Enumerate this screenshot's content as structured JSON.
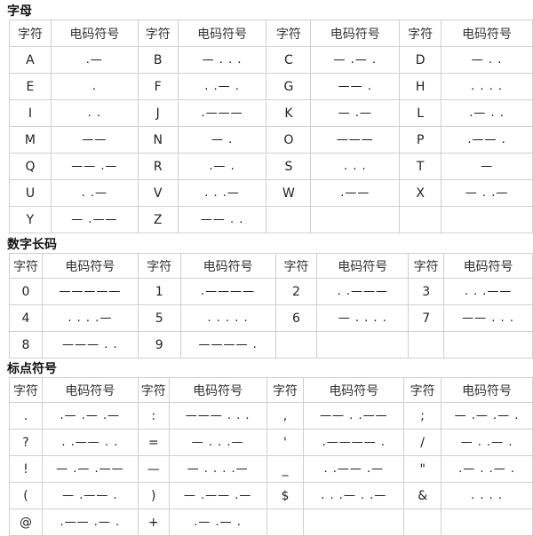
{
  "sections": [
    {
      "title": "字母",
      "headers": [
        "字符",
        "电码符号",
        "字符",
        "电码符号",
        "字符",
        "电码符号",
        "字符",
        "电码符号"
      ],
      "rows": [
        [
          "A",
          ".—",
          "B",
          "— . . .",
          "C",
          "— .— .",
          "D",
          "— . ."
        ],
        [
          "E",
          ".",
          "F",
          ". .— .",
          "G",
          "—— .",
          "H",
          ". . . ."
        ],
        [
          "I",
          ". .",
          "J",
          ".———",
          "K",
          "— .—",
          "L",
          ".— . ."
        ],
        [
          "M",
          "——",
          "N",
          "— .",
          "O",
          "———",
          "P",
          ".—— ."
        ],
        [
          "Q",
          "—— .—",
          "R",
          ".— .",
          "S",
          ". . .",
          "T",
          "—"
        ],
        [
          "U",
          ". .—",
          "V",
          ". . .—",
          "W",
          ".——",
          "X",
          "— . .—"
        ],
        [
          "Y",
          "— .——",
          "Z",
          "—— . .",
          "",
          "",
          "",
          ""
        ]
      ]
    },
    {
      "title": "数字长码",
      "headers": [
        "字符",
        "电码符号",
        "字符",
        "电码符号",
        "字符",
        "电码符号",
        "字符",
        "电码符号"
      ],
      "rows": [
        [
          "0",
          "—————",
          "1",
          ".————",
          "2",
          ". .———",
          "3",
          ". . .——"
        ],
        [
          "4",
          ". . . .—",
          "5",
          ". . . . .",
          "6",
          "— . . . .",
          "7",
          "—— . . ."
        ],
        [
          "8",
          "——— . .",
          "9",
          "———— .",
          "",
          "",
          "",
          ""
        ]
      ]
    },
    {
      "title": "标点符号",
      "headers": [
        "字符",
        "电码符号",
        "字符",
        "电码符号",
        "字符",
        "电码符号",
        "字符",
        "电码符号"
      ],
      "rows": [
        [
          ".",
          ".— .— .—",
          ":",
          "——— . . .",
          ",",
          "—— . .——",
          ";",
          "— .— .— ."
        ],
        [
          "?",
          ". .—— . .",
          "=",
          "— . . .—",
          "'",
          ".———— .",
          "/",
          "— . .— ."
        ],
        [
          "!",
          "— .— .——",
          "—",
          "— . . . .—",
          "_",
          ". .—— .—",
          "\"",
          ".— . .— ."
        ],
        [
          "(",
          "— .—— .",
          ")",
          "— .—— .—",
          "$",
          ". . .— . .—",
          "&",
          ". . . ."
        ],
        [
          "@",
          ".—— .— .",
          "+",
          ".— .— .",
          "",
          "",
          "",
          ""
        ]
      ]
    }
  ]
}
